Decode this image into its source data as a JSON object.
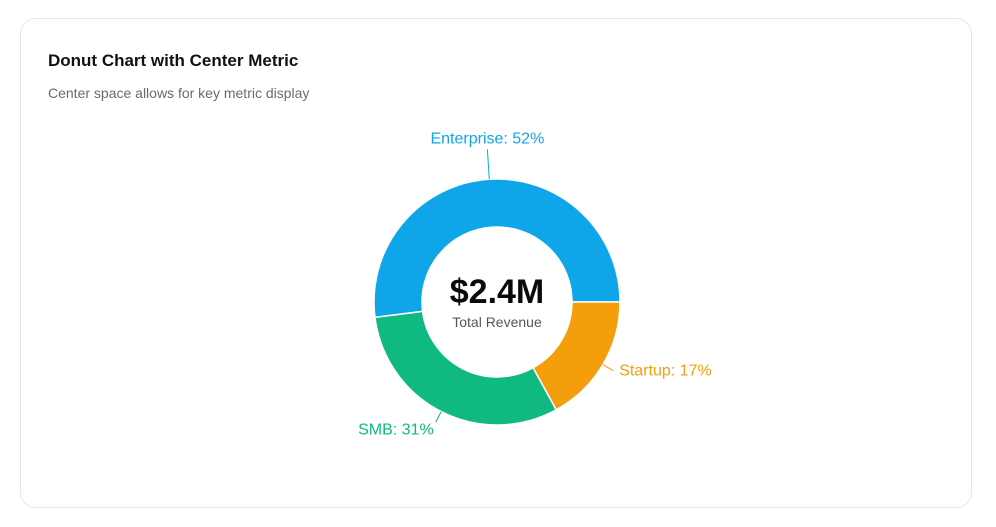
{
  "card": {
    "title": "Donut Chart with Center Metric",
    "subtitle": "Center space allows for key metric display"
  },
  "chart_data": {
    "type": "pie",
    "variant": "donut",
    "categories": [
      "Enterprise",
      "Startup",
      "SMB"
    ],
    "values": [
      52,
      17,
      31
    ],
    "unit": "%",
    "colors": [
      "#0ea5e9",
      "#f59e0b",
      "#10b981"
    ],
    "slice_labels": [
      "Enterprise: 52%",
      "Startup: 17%",
      "SMB: 31%"
    ],
    "center_metric": {
      "value": "$2.4M",
      "label": "Total Revenue"
    }
  }
}
